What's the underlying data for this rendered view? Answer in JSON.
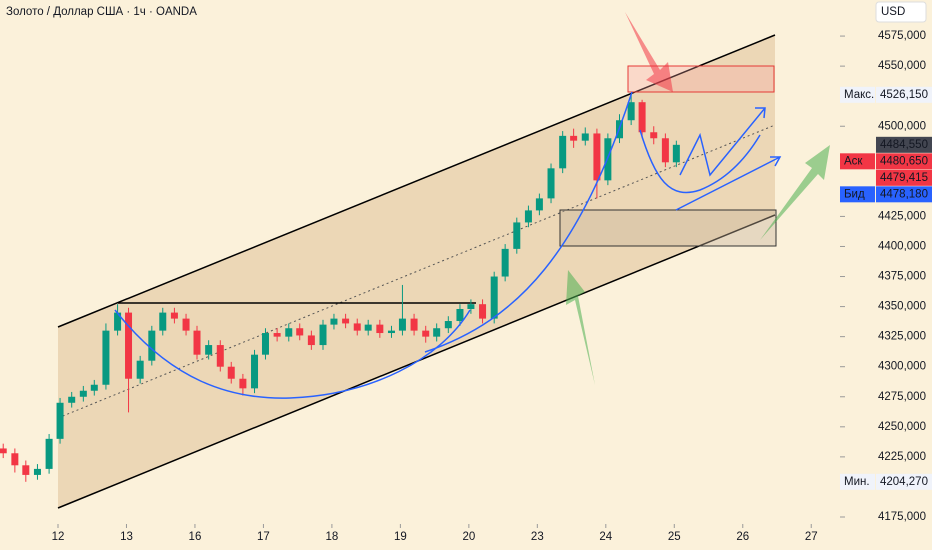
{
  "chart_data": {
    "type": "candlestick",
    "title": "Золото / Доллар США · 1ч · OANDA",
    "currency": "USD",
    "up_color": "#089981",
    "down_color": "#f23645",
    "grid": false,
    "x": [
      -0.8,
      -0.63,
      -0.47,
      -0.3,
      -0.13,
      0.03,
      0.2,
      0.37,
      0.53,
      0.7,
      0.87,
      1.03,
      1.2,
      1.37,
      1.53,
      1.7,
      1.87,
      2.03,
      2.2,
      2.37,
      2.53,
      2.7,
      2.87,
      3.03,
      3.2,
      3.37,
      3.53,
      3.7,
      3.87,
      4.03,
      4.2,
      4.37,
      4.53,
      4.7,
      4.87,
      5.03,
      5.2,
      5.37,
      5.53,
      5.7,
      5.87,
      6.03,
      6.2,
      6.37,
      6.53,
      6.7,
      6.87,
      7.03,
      7.2,
      7.37,
      7.53,
      7.7,
      7.87,
      8.03,
      8.2,
      8.37,
      8.53,
      8.7,
      8.87,
      9.03
    ],
    "open": [
      4232,
      4228,
      4218,
      4210,
      4215,
      4240,
      4270,
      4275,
      4280,
      4285,
      4330,
      4345,
      4290,
      4305,
      4330,
      4345,
      4340,
      4330,
      4310,
      4318,
      4300,
      4290,
      4282,
      4310,
      4328,
      4325,
      4332,
      4326,
      4318,
      4335,
      4340,
      4336,
      4330,
      4335,
      4328,
      4330,
      4340,
      4330,
      4325,
      4332,
      4338,
      4348,
      4352,
      4340,
      4375,
      4398,
      4420,
      4430,
      4440,
      4465,
      4492,
      4488,
      4494,
      4455,
      4490,
      4505,
      4520,
      4495,
      4490,
      4470
    ],
    "high": [
      4236,
      4232,
      4222,
      4219,
      4244,
      4274,
      4279,
      4284,
      4289,
      4336,
      4352,
      4349,
      4309,
      4334,
      4349,
      4349,
      4344,
      4334,
      4322,
      4322,
      4304,
      4294,
      4314,
      4332,
      4332,
      4336,
      4336,
      4330,
      4339,
      4344,
      4344,
      4340,
      4339,
      4339,
      4334,
      4368,
      4344,
      4334,
      4336,
      4342,
      4352,
      4356,
      4356,
      4379,
      4402,
      4424,
      4434,
      4444,
      4469,
      4496,
      4498,
      4499,
      4498,
      4494,
      4510,
      4526.15,
      4522,
      4500,
      4494,
      4488
    ],
    "low": [
      4224,
      4212,
      4204.27,
      4206,
      4211,
      4236,
      4266,
      4271,
      4276,
      4281,
      4326,
      4262,
      4286,
      4301,
      4326,
      4336,
      4326,
      4306,
      4306,
      4296,
      4286,
      4276,
      4278,
      4306,
      4321,
      4321,
      4322,
      4314,
      4314,
      4331,
      4332,
      4326,
      4326,
      4324,
      4324,
      4326,
      4326,
      4320,
      4321,
      4328,
      4334,
      4344,
      4336,
      4336,
      4371,
      4394,
      4416,
      4426,
      4436,
      4461,
      4482,
      4484,
      4440,
      4451,
      4486,
      4501,
      4490,
      4485,
      4466,
      4466
    ],
    "close": [
      4228,
      4218,
      4210,
      4215,
      4240,
      4270,
      4275,
      4280,
      4285,
      4330,
      4345,
      4290,
      4305,
      4330,
      4345,
      4340,
      4330,
      4310,
      4318,
      4300,
      4290,
      4282,
      4310,
      4328,
      4325,
      4332,
      4326,
      4318,
      4335,
      4340,
      4336,
      4330,
      4335,
      4328,
      4330,
      4340,
      4330,
      4325,
      4332,
      4338,
      4348,
      4352,
      4340,
      4375,
      4398,
      4420,
      4430,
      4440,
      4465,
      4492,
      4488,
      4494,
      4455,
      4490,
      4505,
      4520,
      4495,
      4490,
      4470,
      4484.55
    ],
    "xlim": [
      -0.847,
      11.42
    ],
    "xticks": [
      {
        "value": 0,
        "label": "12"
      },
      {
        "value": 1,
        "label": "13"
      },
      {
        "value": 2,
        "label": "16"
      },
      {
        "value": 3,
        "label": "17"
      },
      {
        "value": 4,
        "label": "18"
      },
      {
        "value": 5,
        "label": "19"
      },
      {
        "value": 6,
        "label": "20"
      },
      {
        "value": 7,
        "label": "23"
      },
      {
        "value": 8,
        "label": "24"
      },
      {
        "value": 9,
        "label": "25"
      },
      {
        "value": 10,
        "label": "26"
      },
      {
        "value": 11,
        "label": "27"
      }
    ],
    "ylim": [
      4172.5,
      4605
    ],
    "yticks": [
      {
        "value": 4575,
        "label": "4575,000"
      },
      {
        "value": 4550,
        "label": "4550,000"
      },
      {
        "value": 4500,
        "label": "4500,000"
      },
      {
        "value": 4425,
        "label": "4425,000"
      },
      {
        "value": 4400,
        "label": "4400,000"
      },
      {
        "value": 4375,
        "label": "4375,000"
      },
      {
        "value": 4350,
        "label": "4350,000"
      },
      {
        "value": 4325,
        "label": "4325,000"
      },
      {
        "value": 4300,
        "label": "4300,000"
      },
      {
        "value": 4275,
        "label": "4275,000"
      },
      {
        "value": 4250,
        "label": "4250,000"
      },
      {
        "value": 4225,
        "label": "4225,000"
      },
      {
        "value": 4175,
        "label": "4175,000"
      }
    ],
    "price_labels": [
      {
        "tag": "Макс.",
        "value": 4526.15,
        "label": "4526,150",
        "color": "#f0f3fa"
      },
      {
        "value": 4484.55,
        "label": "4484,550",
        "color": "#434651"
      },
      {
        "tag": "Аск",
        "value": 4480.65,
        "label": "4480,650",
        "color": "#f23645"
      },
      {
        "value": 4479.415,
        "label": "4479,415",
        "color": "#f23645"
      },
      {
        "tag": "Бид",
        "value": 4478.18,
        "label": "4478,180",
        "color": "#2962ff"
      },
      {
        "tag": "Мин.",
        "value": 4204.27,
        "label": "4204,270",
        "color": "#f0f3fa"
      }
    ]
  }
}
